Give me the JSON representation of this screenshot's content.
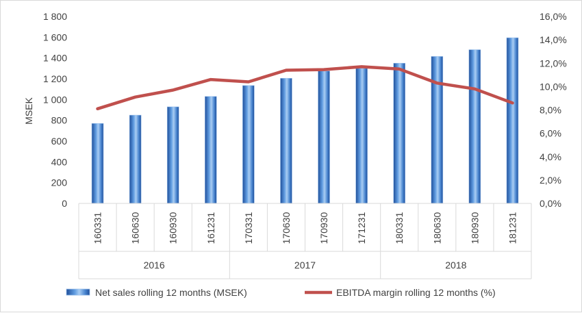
{
  "chart_data": {
    "type": "bar",
    "categories": [
      "160331",
      "160630",
      "160930",
      "161231",
      "170331",
      "170630",
      "170930",
      "171231",
      "180331",
      "180630",
      "180930",
      "181231"
    ],
    "groups": [
      {
        "label": "2016",
        "count": 4
      },
      {
        "label": "2017",
        "count": 4
      },
      {
        "label": "2018",
        "count": 4
      }
    ],
    "series": [
      {
        "name": "Net sales rolling 12 months (MSEK)",
        "type": "bar",
        "axis": "left",
        "color": "#4a86d0",
        "values": [
          770,
          850,
          930,
          1030,
          1135,
          1205,
          1275,
          1300,
          1350,
          1415,
          1480,
          1595
        ]
      },
      {
        "name": "EBITDA margin rolling 12 months (%)",
        "type": "line",
        "axis": "right",
        "color": "#c0504d",
        "values": [
          8.1,
          9.1,
          9.7,
          10.6,
          10.4,
          11.4,
          11.45,
          11.7,
          11.5,
          10.3,
          9.8,
          8.6
        ]
      }
    ],
    "ylabel": "MSEK",
    "ylim": [
      0,
      1800
    ],
    "yticks": [
      "0",
      "200",
      "400",
      "600",
      "800",
      "1 000",
      "1 200",
      "1 400",
      "1 600",
      "1 800"
    ],
    "y2lim": [
      0,
      16
    ],
    "y2ticks": [
      "0,0%",
      "2,0%",
      "4,0%",
      "6,0%",
      "8,0%",
      "10,0%",
      "12,0%",
      "14,0%",
      "16,0%"
    ],
    "grid": false,
    "legend_position": "bottom"
  }
}
